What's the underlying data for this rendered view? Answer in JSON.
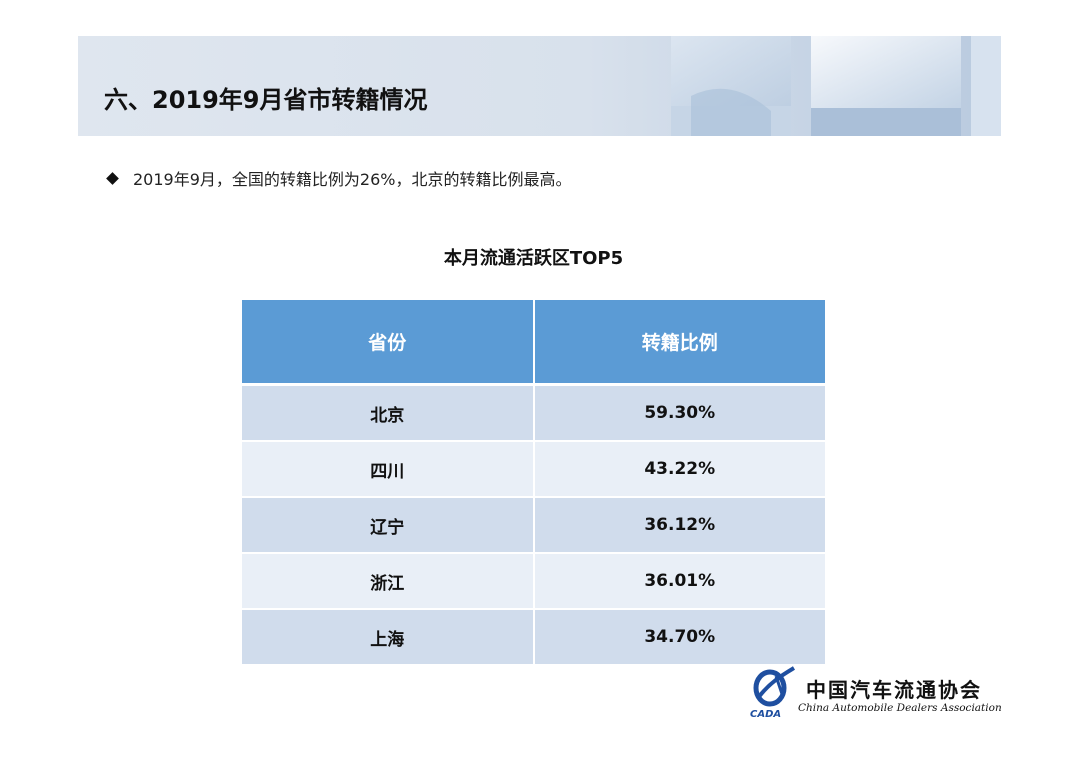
{
  "header": {
    "title": "六、2019年9月省市转籍情况"
  },
  "summary": {
    "text": "2019年9月，全国的转籍比例为26%，北京的转籍比例最高。"
  },
  "table": {
    "title": "本月流通活跃区TOP5",
    "columns": [
      "省份",
      "转籍比例"
    ],
    "rows": [
      {
        "province": "北京",
        "ratio": "59.30%"
      },
      {
        "province": "四川",
        "ratio": "43.22%"
      },
      {
        "province": "辽宁",
        "ratio": "36.12%"
      },
      {
        "province": "浙江",
        "ratio": "36.01%"
      },
      {
        "province": "上海",
        "ratio": "34.70%"
      }
    ]
  },
  "logo": {
    "abbr": "CADA",
    "name_cn": "中国汽车流通协会",
    "name_en": "China Automobile Dealers Association"
  },
  "colors": {
    "header_blue": "#5b9bd5",
    "row_dark": "#d0dcec",
    "row_light": "#e9eff7",
    "logo_blue": "#1f4fa0"
  }
}
